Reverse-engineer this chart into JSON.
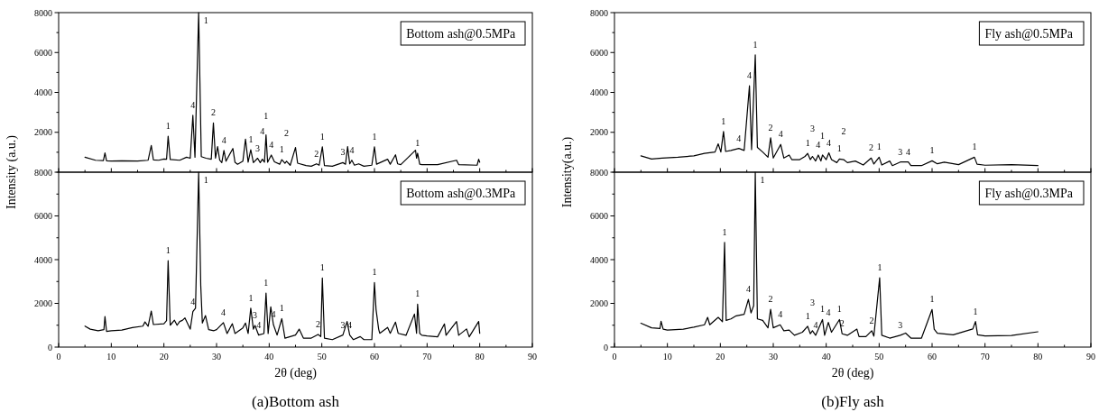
{
  "chart_data": [
    {
      "type": "line",
      "ylabel": "Intensity (a.u.)",
      "xlim": [
        0,
        90
      ],
      "ylim": [
        0,
        8000
      ],
      "tick_labels": "y",
      "legend": "top right",
      "xticks": [
        0,
        {
          "value": 5,
          "label": null
        },
        10,
        {
          "value": 15,
          "label": null
        },
        20,
        {
          "value": 25,
          "label": null
        },
        30,
        {
          "value": 35,
          "label": null
        },
        40,
        {
          "value": 45,
          "label": null
        },
        50,
        {
          "value": 55,
          "label": null
        },
        60,
        {
          "value": 65,
          "label": null
        },
        70,
        {
          "value": 75,
          "label": null
        },
        80,
        {
          "value": 85,
          "label": null
        },
        90
      ],
      "yticks": [
        {
          "value": 0,
          "label": null
        },
        {
          "value": 1000,
          "label": null
        },
        2000,
        {
          "value": 3000,
          "label": null
        },
        4000,
        {
          "value": 5000,
          "label": null
        },
        6000,
        {
          "value": 7000,
          "label": null
        },
        8000
      ],
      "series": [
        {
          "name": "Bottom ash@0.5MPa",
          "color": "#000000",
          "x": [
            5,
            7,
            8.5,
            8.8,
            9.1,
            10,
            12,
            15,
            17,
            17.6,
            18,
            19,
            20,
            20.5,
            20.8,
            21.2,
            23,
            24.3,
            25,
            25.5,
            25.9,
            26.6,
            27.1,
            28,
            29,
            29.4,
            29.8,
            30.2,
            30.6,
            31,
            31.4,
            31.8,
            33.1,
            33.5,
            34,
            35,
            35.5,
            36,
            36.5,
            37,
            37.8,
            38.3,
            38.7,
            39.1,
            39.4,
            39.7,
            40.4,
            41,
            42,
            42.4,
            43,
            43.3,
            44,
            45,
            45.4,
            47,
            48,
            49,
            49.5,
            50.1,
            50.5,
            52,
            54,
            54.5,
            54.9,
            55.3,
            55.7,
            56.2,
            57,
            58,
            59.5,
            60,
            60.4,
            62.5,
            63,
            64,
            64.4,
            65,
            67.8,
            68,
            68.2,
            68.6,
            69,
            72,
            75.6,
            76,
            79.5,
            79.8,
            80
          ],
          "values": [
            750,
            600,
            580,
            970,
            570,
            560,
            570,
            560,
            600,
            1340,
            620,
            600,
            660,
            650,
            1800,
            640,
            600,
            750,
            700,
            2850,
            750,
            8000,
            780,
            700,
            650,
            2470,
            700,
            1280,
            600,
            480,
            1090,
            550,
            1190,
            500,
            400,
            550,
            1660,
            500,
            1130,
            480,
            700,
            480,
            650,
            500,
            1870,
            500,
            860,
            520,
            400,
            630,
            450,
            550,
            350,
            1240,
            450,
            330,
            300,
            420,
            350,
            1270,
            330,
            300,
            480,
            400,
            1280,
            420,
            600,
            350,
            420,
            300,
            350,
            1270,
            400,
            650,
            400,
            870,
            420,
            380,
            1100,
            700,
            950,
            400,
            380,
            380,
            600,
            380,
            350,
            650,
            500
          ]
        }
      ],
      "annotations": [
        {
          "text": "1",
          "x": 26.6,
          "y": 8000
        },
        {
          "text": "1",
          "x": 20.8,
          "y": 1800
        },
        {
          "text": "4",
          "x": 25.5,
          "y": 2850
        },
        {
          "text": "2",
          "x": 29.4,
          "y": 2470
        },
        {
          "text": "4",
          "x": 31.4,
          "y": 1090
        },
        {
          "text": "1",
          "x": 36.5,
          "y": 1130
        },
        {
          "text": "3",
          "x": 37.8,
          "y": 700
        },
        {
          "text": "4",
          "x": 38.7,
          "y": 650
        },
        {
          "text": "1",
          "x": 39.4,
          "y": 1870
        },
        {
          "text": "4",
          "x": 40.4,
          "y": 860
        },
        {
          "text": "1",
          "x": 42.4,
          "y": 630
        },
        {
          "text": "2",
          "x": 43.3,
          "y": 550
        },
        {
          "text": "2",
          "x": 49,
          "y": 420
        },
        {
          "text": "1",
          "x": 50.1,
          "y": 1270
        },
        {
          "text": "3",
          "x": 54,
          "y": 480
        },
        {
          "text": "4",
          "x": 55.7,
          "y": 600
        },
        {
          "text": "1",
          "x": 60,
          "y": 1270
        },
        {
          "text": "1",
          "x": 68.2,
          "y": 950
        }
      ]
    },
    {
      "type": "line",
      "ylabel": "Intensity(a.u.)",
      "xlim": [
        0,
        90
      ],
      "ylim": [
        0,
        8000
      ],
      "tick_labels": "y",
      "legend": "top right",
      "xticks": [
        0,
        {
          "value": 5,
          "label": null
        },
        10,
        {
          "value": 15,
          "label": null
        },
        20,
        {
          "value": 25,
          "label": null
        },
        30,
        {
          "value": 35,
          "label": null
        },
        40,
        {
          "value": 45,
          "label": null
        },
        50,
        {
          "value": 55,
          "label": null
        },
        60,
        {
          "value": 65,
          "label": null
        },
        70,
        {
          "value": 75,
          "label": null
        },
        80,
        {
          "value": 85,
          "label": null
        },
        90
      ],
      "yticks": [
        {
          "value": 0,
          "label": null
        },
        {
          "value": 1000,
          "label": null
        },
        2000,
        {
          "value": 3000,
          "label": null
        },
        4000,
        {
          "value": 5000,
          "label": null
        },
        6000,
        {
          "value": 7000,
          "label": null
        },
        8000
      ],
      "series": [
        {
          "name": "Fly ash@0.5MPa",
          "color": "#000000",
          "x": [
            5,
            7,
            9,
            12,
            15,
            17,
            19,
            19.6,
            20.1,
            20.6,
            21,
            22,
            23.5,
            24.5,
            25.5,
            25.9,
            26.6,
            27,
            28,
            29,
            29.5,
            30,
            31.4,
            32,
            33,
            33.5,
            35,
            36,
            36.5,
            37,
            37.4,
            38,
            38.5,
            39,
            39.3,
            40,
            40.5,
            41,
            42,
            42.5,
            43.3,
            44,
            45.5,
            47,
            48.5,
            49,
            50,
            50.5,
            52,
            52.5,
            54,
            55.5,
            56,
            58,
            60,
            61,
            62.3,
            65,
            68,
            68.5,
            70,
            75,
            80
          ],
          "values": [
            820,
            660,
            710,
            750,
            820,
            940,
            1010,
            1420,
            1010,
            2040,
            1040,
            1090,
            1190,
            1090,
            4330,
            1130,
            5880,
            1240,
            1010,
            750,
            1720,
            710,
            1390,
            710,
            860,
            630,
            630,
            790,
            940,
            630,
            790,
            560,
            860,
            560,
            860,
            630,
            970,
            630,
            480,
            660,
            630,
            480,
            560,
            360,
            710,
            410,
            750,
            360,
            560,
            330,
            510,
            510,
            330,
            330,
            570,
            420,
            500,
            380,
            750,
            400,
            350,
            380,
            330
          ]
        }
      ],
      "annotations": [
        {
          "text": "1",
          "x": 26.6,
          "y": 5880
        },
        {
          "text": "4",
          "x": 25.5,
          "y": 4330
        },
        {
          "text": "1",
          "x": 20.6,
          "y": 2040
        },
        {
          "text": "4",
          "x": 23.5,
          "y": 1190
        },
        {
          "text": "2",
          "x": 29.5,
          "y": 1720
        },
        {
          "text": "4",
          "x": 31.4,
          "y": 1390
        },
        {
          "text": "1",
          "x": 36.5,
          "y": 940
        },
        {
          "text": "3",
          "x": 37.4,
          "y": 790
        },
        {
          "text": "4",
          "x": 38.5,
          "y": 860
        },
        {
          "text": "1",
          "x": 39.3,
          "y": 860
        },
        {
          "text": "4",
          "x": 40.5,
          "y": 970
        },
        {
          "text": "1",
          "x": 42.5,
          "y": 660
        },
        {
          "text": "2",
          "x": 43.3,
          "y": 630
        },
        {
          "text": "2",
          "x": 48.5,
          "y": 710
        },
        {
          "text": "1",
          "x": 50,
          "y": 750
        },
        {
          "text": "3",
          "x": 54,
          "y": 510
        },
        {
          "text": "4",
          "x": 55.5,
          "y": 510
        },
        {
          "text": "1",
          "x": 60,
          "y": 570
        },
        {
          "text": "1",
          "x": 68,
          "y": 750
        }
      ]
    },
    {
      "type": "line",
      "xlabel": "2θ (deg)",
      "xlim": [
        0,
        90
      ],
      "ylim": [
        0,
        8000
      ],
      "legend": "top right",
      "xticks": [
        0,
        {
          "value": 5,
          "label": null
        },
        10,
        {
          "value": 15,
          "label": null
        },
        20,
        {
          "value": 25,
          "label": null
        },
        30,
        {
          "value": 35,
          "label": null
        },
        40,
        {
          "value": 45,
          "label": null
        },
        50,
        {
          "value": 55,
          "label": null
        },
        60,
        {
          "value": 65,
          "label": null
        },
        70,
        {
          "value": 75,
          "label": null
        },
        80,
        {
          "value": 85,
          "label": null
        },
        90
      ],
      "yticks": [
        0,
        {
          "value": 1000,
          "label": null
        },
        2000,
        {
          "value": 3000,
          "label": null
        },
        4000,
        {
          "value": 5000,
          "label": null
        },
        6000,
        {
          "value": 7000,
          "label": null
        },
        8000
      ],
      "series": [
        {
          "name": "Bottom ash@0.3MPa",
          "color": "#000000",
          "x": [
            5,
            6,
            7.5,
            8.6,
            8.8,
            9.1,
            10,
            12,
            14,
            16,
            16.4,
            17,
            17.6,
            18,
            20,
            20.5,
            20.8,
            21.2,
            22,
            22.5,
            23,
            23.5,
            24,
            25,
            25.5,
            26,
            26.6,
            27,
            27.3,
            27.9,
            28.5,
            29.5,
            30,
            31.3,
            32,
            33,
            33.5,
            35,
            35.5,
            36,
            36.5,
            37,
            37.3,
            38,
            39,
            39.4,
            39.8,
            40.3,
            40.8,
            41.5,
            42.4,
            43,
            45,
            45.7,
            46.5,
            48,
            49.3,
            49.8,
            50.1,
            50.5,
            52,
            54,
            54.8,
            55.3,
            56,
            57.3,
            58,
            59.5,
            60,
            60.3,
            60.8,
            61,
            62.5,
            63,
            64,
            64.5,
            66,
            67.6,
            68,
            68.2,
            68.6,
            69,
            70,
            72,
            73.3,
            73.6,
            75.6,
            76,
            77.5,
            78,
            79.8,
            80
          ],
          "values": [
            960,
            820,
            750,
            800,
            1400,
            720,
            750,
            780,
            890,
            960,
            1150,
            950,
            1650,
            1030,
            1070,
            1210,
            3950,
            1000,
            1230,
            1000,
            1170,
            1220,
            1330,
            820,
            1620,
            1780,
            8000,
            2810,
            1100,
            1440,
            800,
            750,
            800,
            1120,
            620,
            1070,
            620,
            880,
            1100,
            620,
            1780,
            820,
            990,
            550,
            620,
            2470,
            620,
            1840,
            1030,
            550,
            1300,
            410,
            550,
            820,
            410,
            410,
            580,
            480,
            3160,
            410,
            340,
            550,
            1170,
            550,
            340,
            480,
            340,
            340,
            2950,
            1730,
            820,
            630,
            900,
            630,
            1140,
            630,
            540,
            1510,
            630,
            1960,
            630,
            540,
            510,
            470,
            1060,
            540,
            1170,
            540,
            830,
            470,
            1170,
            630
          ]
        }
      ],
      "annotations": [
        {
          "text": "1",
          "x": 26.6,
          "y": 8000
        },
        {
          "text": "1",
          "x": 20.8,
          "y": 3950
        },
        {
          "text": "4",
          "x": 25.5,
          "y": 1620
        },
        {
          "text": "4",
          "x": 31.3,
          "y": 1120
        },
        {
          "text": "1",
          "x": 36.5,
          "y": 1780
        },
        {
          "text": "3",
          "x": 37.3,
          "y": 990
        },
        {
          "text": "4",
          "x": 38,
          "y": 550
        },
        {
          "text": "1",
          "x": 39.4,
          "y": 2470
        },
        {
          "text": "4",
          "x": 40.8,
          "y": 1030
        },
        {
          "text": "1",
          "x": 42.4,
          "y": 1300
        },
        {
          "text": "2",
          "x": 49.3,
          "y": 580
        },
        {
          "text": "1",
          "x": 50.1,
          "y": 3160
        },
        {
          "text": "3",
          "x": 54,
          "y": 550
        },
        {
          "text": "4",
          "x": 55.3,
          "y": 550
        },
        {
          "text": "1",
          "x": 60,
          "y": 2950
        },
        {
          "text": "1",
          "x": 68.2,
          "y": 1960
        },
        "(a)Bottom ash"
      ]
    },
    {
      "type": "line",
      "xlabel": "2θ (deg)",
      "xlim": [
        0,
        90
      ],
      "ylim": [
        0,
        8000
      ],
      "legend": "top right",
      "xticks": [
        0,
        {
          "value": 5,
          "label": null
        },
        10,
        {
          "value": 15,
          "label": null
        },
        20,
        {
          "value": 25,
          "label": null
        },
        30,
        {
          "value": 35,
          "label": null
        },
        40,
        {
          "value": 45,
          "label": null
        },
        50,
        {
          "value": 55,
          "label": null
        },
        60,
        {
          "value": 65,
          "label": null
        },
        70,
        {
          "value": 75,
          "label": null
        },
        80,
        {
          "value": 85,
          "label": null
        },
        90
      ],
      "yticks": [
        0,
        {
          "value": 1000,
          "label": null
        },
        2000,
        {
          "value": 3000,
          "label": null
        },
        4000,
        {
          "value": 5000,
          "label": null
        },
        6000,
        {
          "value": 7000,
          "label": null
        },
        8000
      ],
      "series": [
        {
          "name": "Fly ash@0.3MPa",
          "color": "#000000",
          "x": [
            5,
            7,
            8.6,
            8.8,
            9.2,
            10,
            13,
            15,
            17,
            17.6,
            18,
            19.6,
            20.4,
            20.8,
            21.1,
            22,
            23,
            24.5,
            25.3,
            25.8,
            26.3,
            26.6,
            27,
            28,
            29,
            29.5,
            30,
            31.3,
            32,
            33,
            34,
            35.5,
            36.5,
            37,
            37.4,
            38,
            39.3,
            39.7,
            40.4,
            41,
            42.5,
            43,
            44,
            45.8,
            46.2,
            47.5,
            48.6,
            49,
            50.1,
            50.5,
            52,
            54,
            55,
            56,
            58,
            60,
            60.4,
            61,
            64,
            67.7,
            68.2,
            68.6,
            70,
            75,
            80
          ],
          "values": [
            1090,
            880,
            850,
            1180,
            820,
            780,
            820,
            910,
            1020,
            1360,
            1020,
            1360,
            1160,
            4790,
            1220,
            1290,
            1430,
            1500,
            2180,
            1560,
            1900,
            8000,
            1290,
            1220,
            880,
            1730,
            880,
            1020,
            750,
            780,
            540,
            680,
            950,
            610,
            750,
            540,
            1260,
            540,
            1130,
            680,
            1260,
            610,
            540,
            820,
            480,
            480,
            750,
            500,
            3170,
            540,
            410,
            540,
            640,
            410,
            410,
            1720,
            820,
            630,
            560,
            830,
            1170,
            560,
            510,
            530,
            700
          ]
        }
      ],
      "annotations": [
        {
          "text": "1",
          "x": 26.6,
          "y": 8000
        },
        {
          "text": "1",
          "x": 20.8,
          "y": 4790
        },
        {
          "text": "4",
          "x": 25.3,
          "y": 2180
        },
        {
          "text": "2",
          "x": 29.5,
          "y": 1730
        },
        {
          "text": "4",
          "x": 31.3,
          "y": 1020
        },
        {
          "text": "1",
          "x": 36.5,
          "y": 950
        },
        {
          "text": "3",
          "x": 37.4,
          "y": 750
        },
        {
          "text": "4",
          "x": 38,
          "y": 540
        },
        {
          "text": "1",
          "x": 39.3,
          "y": 1260
        },
        {
          "text": "4",
          "x": 40.4,
          "y": 1130
        },
        {
          "text": "1",
          "x": 42.5,
          "y": 1260
        },
        {
          "text": "2",
          "x": 43,
          "y": 610
        },
        {
          "text": "2",
          "x": 48.6,
          "y": 750
        },
        {
          "text": "1",
          "x": 50.1,
          "y": 3170
        },
        {
          "text": "3",
          "x": 54,
          "y": 540
        },
        {
          "text": "1",
          "x": 60,
          "y": 1720
        },
        {
          "text": "1",
          "x": 68.2,
          "y": 1170
        },
        "(b)Fly ash"
      ]
    }
  ]
}
